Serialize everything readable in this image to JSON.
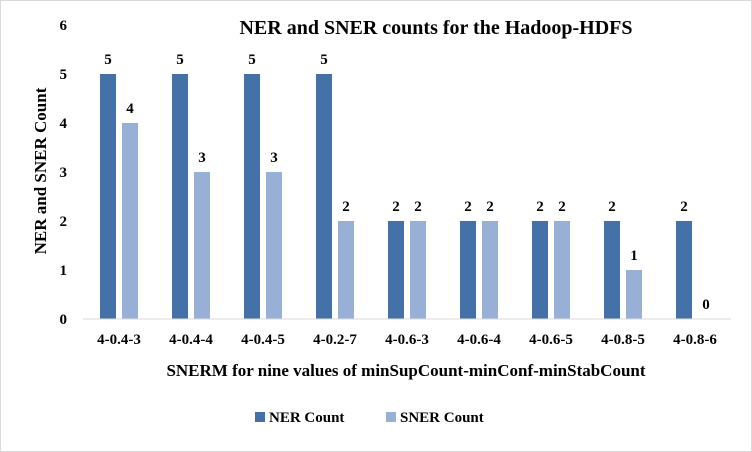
{
  "chart_data": {
    "type": "bar",
    "title": "NER and SNER counts for the Hadoop-HDFS",
    "xlabel": "SNERM for nine values of minSupCount-minConf-minStabCount",
    "ylabel": "NER and SNER Count",
    "categories": [
      "4-0.4-3",
      "4-0.4-4",
      "4-0.4-5",
      "4-0.2-7",
      "4-0.6-3",
      "4-0.6-4",
      "4-0.6-5",
      "4-0.8-5",
      "4-0.8-6"
    ],
    "series": [
      {
        "name": "NER Count",
        "values": [
          5,
          5,
          5,
          5,
          2,
          2,
          2,
          2,
          2
        ],
        "color": "#4472a8"
      },
      {
        "name": "SNER Count",
        "values": [
          4,
          3,
          3,
          2,
          2,
          2,
          2,
          1,
          0
        ],
        "color": "#98afd6"
      }
    ],
    "ylim": [
      0,
      6
    ],
    "yticks": [
      "0",
      "1",
      "2",
      "3",
      "4",
      "5",
      "6"
    ],
    "grid": false,
    "legend": "bottom-center",
    "data_labels": true
  }
}
